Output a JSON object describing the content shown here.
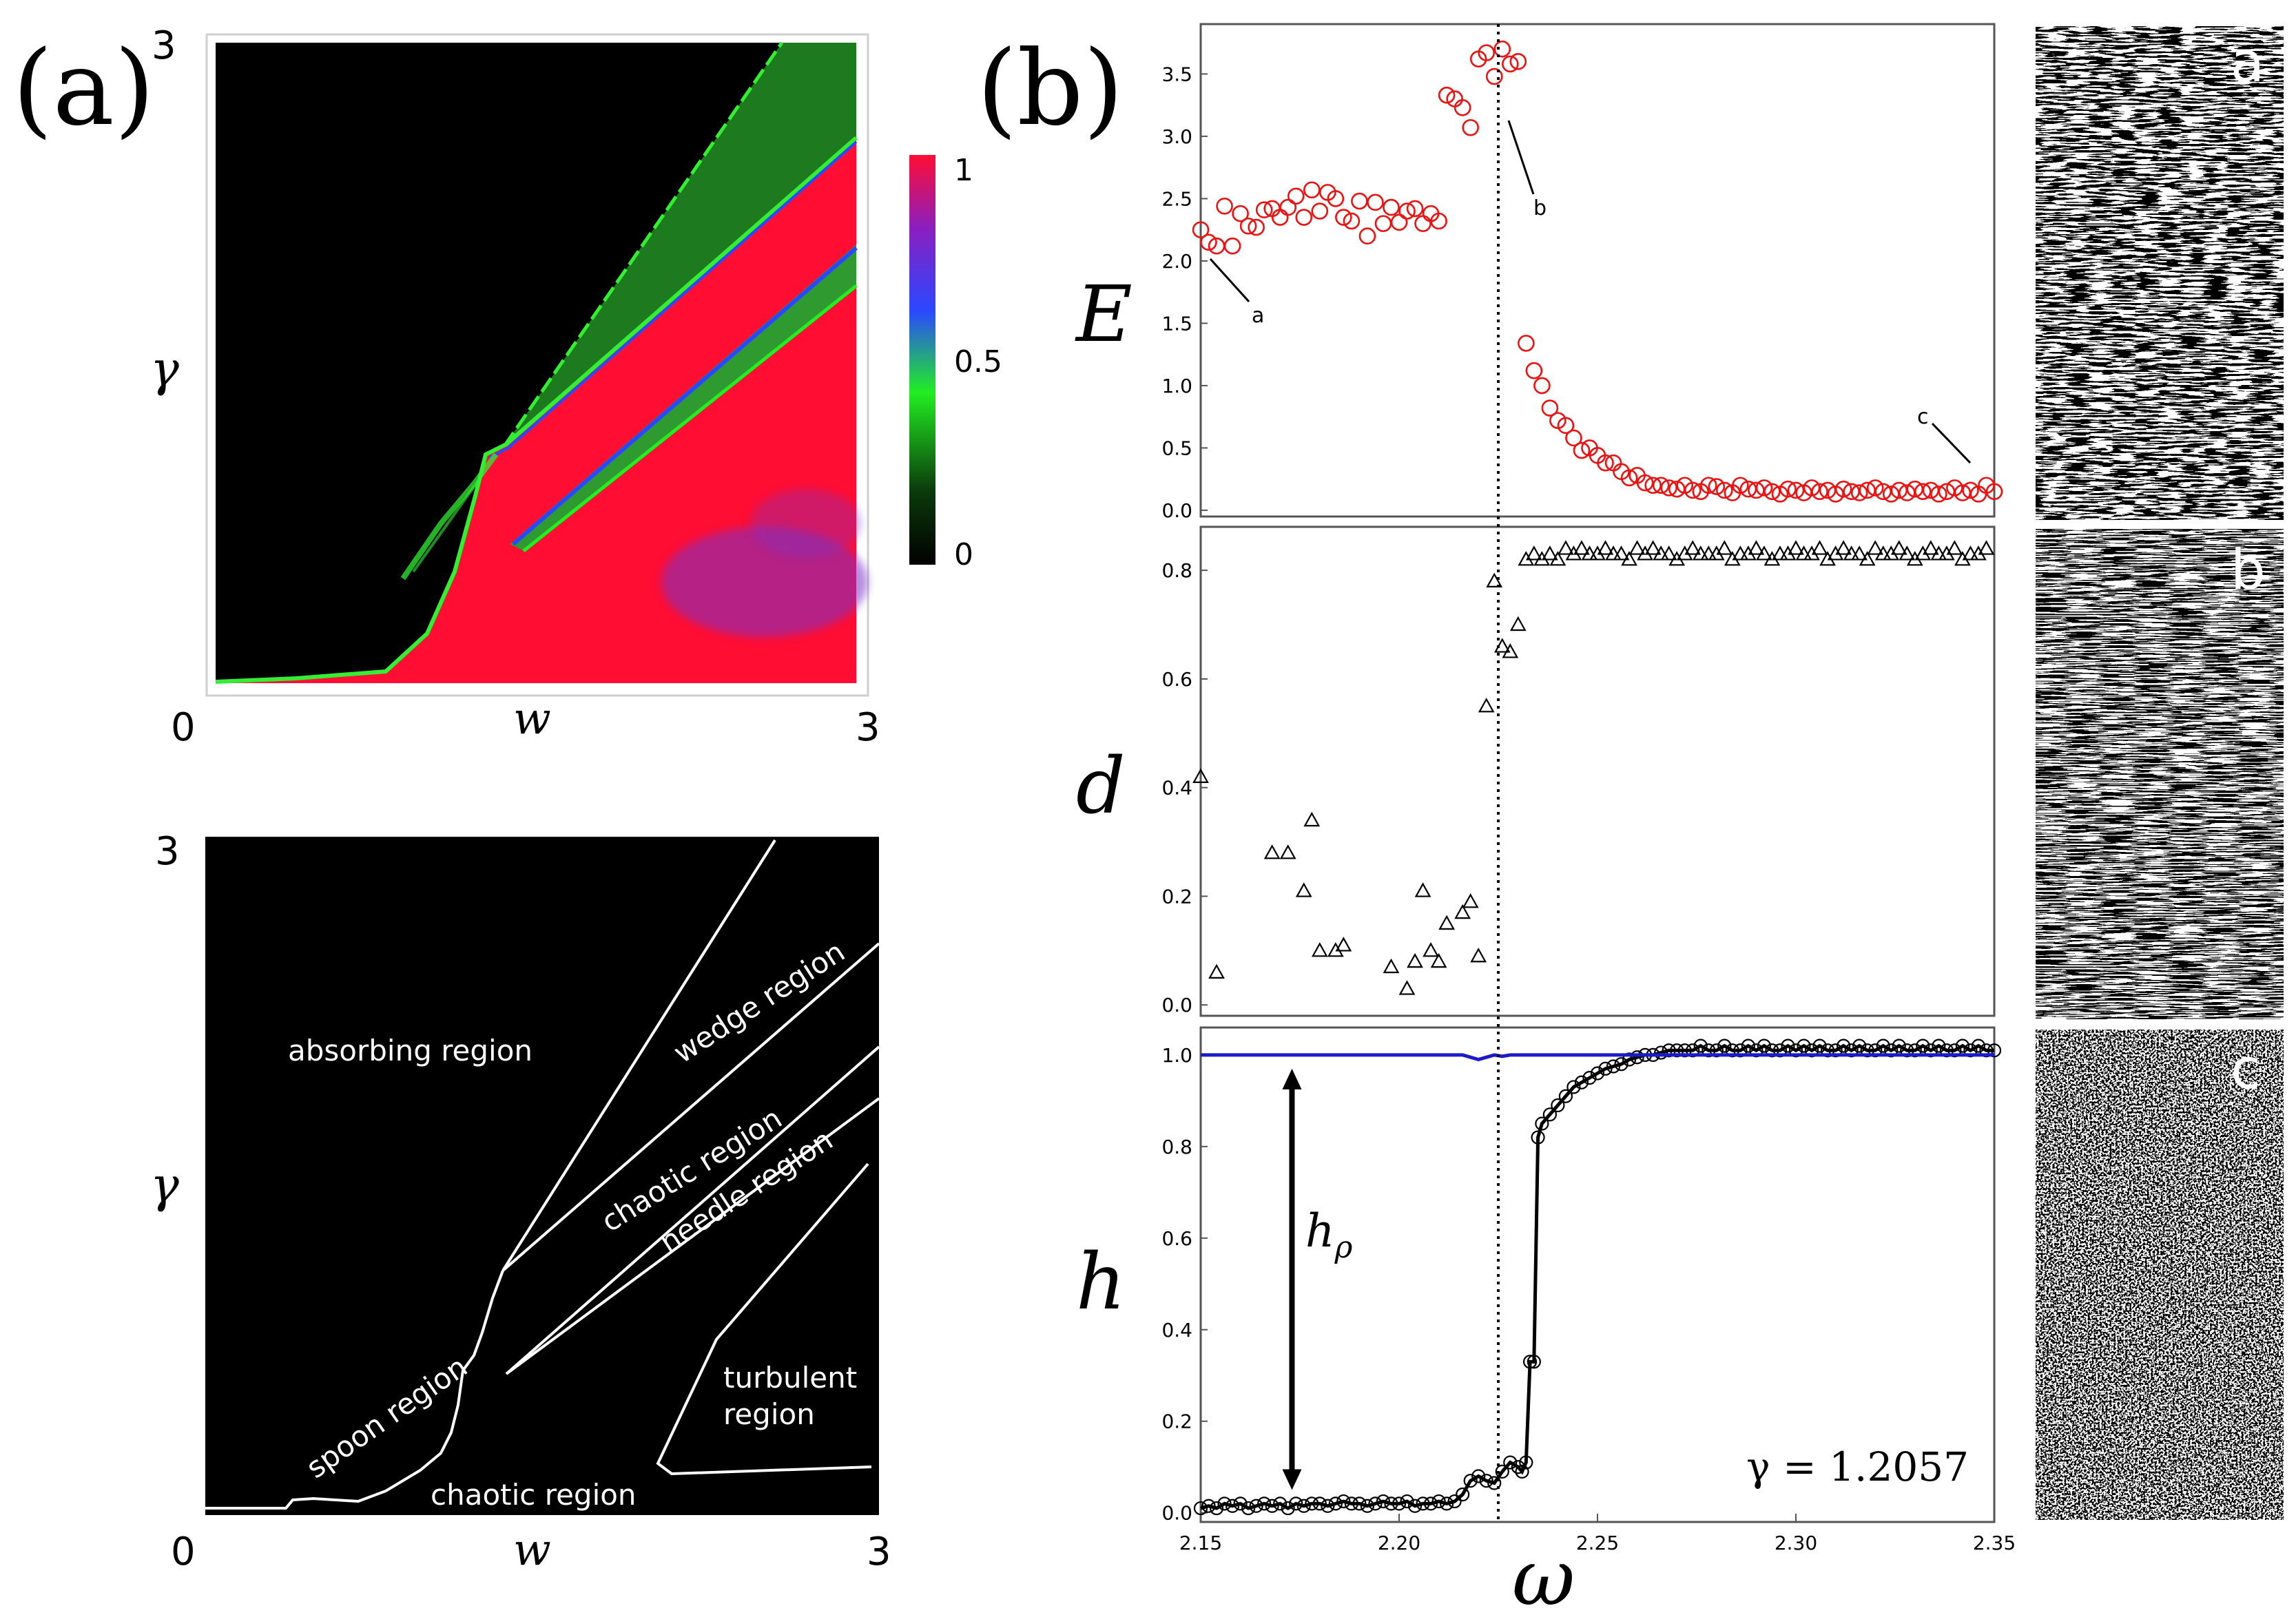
{
  "panel_labels": {
    "a": "(a)",
    "b": "(b)"
  },
  "colors": {
    "absorbing": "#000000",
    "laminar_green": "#1e7a1e",
    "bright_green": "#33ee33",
    "chaotic_red": "#ff0d33",
    "purple": "#7a33c8",
    "blue": "#2a3cff",
    "marker_red": "#ee1111",
    "line_blue": "#1b1bcc"
  },
  "chart_data": [
    {
      "id": "phase_map",
      "type": "heatmap",
      "xlabel": "w",
      "ylabel": "γ",
      "x_ticks": [
        "0",
        "3"
      ],
      "y_ticks": [
        "3"
      ],
      "xlim": [
        0,
        3
      ],
      "ylim": [
        0,
        3
      ],
      "colorbar": {
        "ticks": [
          "1",
          "0.5",
          "0"
        ],
        "range": [
          0,
          1
        ],
        "colors": [
          "#000000",
          "#0a5a0a",
          "#22ee22",
          "#2040ff",
          "#8a20c8",
          "#ff0d33"
        ]
      },
      "regions": [
        {
          "name": "absorbing",
          "value": 0
        },
        {
          "name": "wedge",
          "value": 0.3
        },
        {
          "name": "needle",
          "value": 0.35
        },
        {
          "name": "chaotic",
          "value": 1
        },
        {
          "name": "turbulent",
          "value": 0.85
        }
      ]
    },
    {
      "id": "region_diagram",
      "type": "diagram",
      "xlabel": "w",
      "ylabel": "γ",
      "x_ticks": [
        "0",
        "3"
      ],
      "y_ticks": [
        "3"
      ],
      "xlim": [
        0,
        3
      ],
      "ylim": [
        0,
        3
      ],
      "labels": [
        "absorbing region",
        "wedge region",
        "chaotic region",
        "needle region",
        "spoon region",
        "turbulent",
        "region",
        "chaotic region"
      ]
    },
    {
      "id": "E_vs_omega",
      "type": "scatter",
      "ylabel": "E",
      "xlim": [
        2.15,
        2.35
      ],
      "ylim": [
        -0.05,
        3.9
      ],
      "y_ticks": [
        "0.0",
        "0.5",
        "1.0",
        "1.5",
        "2.0",
        "2.5",
        "3.0",
        "3.5"
      ],
      "vline": 2.225,
      "x": [
        2.15,
        2.152,
        2.154,
        2.156,
        2.158,
        2.16,
        2.162,
        2.164,
        2.166,
        2.168,
        2.17,
        2.172,
        2.174,
        2.176,
        2.178,
        2.18,
        2.182,
        2.184,
        2.186,
        2.188,
        2.19,
        2.192,
        2.194,
        2.196,
        2.198,
        2.2,
        2.202,
        2.204,
        2.206,
        2.208,
        2.21,
        2.212,
        2.214,
        2.216,
        2.218,
        2.22,
        2.222,
        2.224,
        2.226,
        2.228,
        2.23,
        2.232,
        2.234,
        2.236,
        2.238,
        2.24,
        2.242,
        2.244,
        2.246,
        2.248,
        2.25,
        2.252,
        2.254,
        2.256,
        2.258,
        2.26,
        2.262,
        2.264,
        2.266,
        2.268,
        2.27,
        2.272,
        2.274,
        2.276,
        2.278,
        2.28,
        2.282,
        2.284,
        2.286,
        2.288,
        2.29,
        2.292,
        2.294,
        2.296,
        2.298,
        2.3,
        2.302,
        2.304,
        2.306,
        2.308,
        2.31,
        2.312,
        2.314,
        2.316,
        2.318,
        2.32,
        2.322,
        2.324,
        2.326,
        2.328,
        2.33,
        2.332,
        2.334,
        2.336,
        2.338,
        2.34,
        2.342,
        2.344,
        2.346,
        2.348,
        2.35
      ],
      "y": [
        2.25,
        2.15,
        2.12,
        2.44,
        2.12,
        2.38,
        2.28,
        2.27,
        2.41,
        2.42,
        2.35,
        2.43,
        2.52,
        2.35,
        2.57,
        2.4,
        2.55,
        2.5,
        2.35,
        2.32,
        2.48,
        2.2,
        2.47,
        2.3,
        2.43,
        2.31,
        2.4,
        2.42,
        2.3,
        2.38,
        2.32,
        3.33,
        3.3,
        3.23,
        3.07,
        3.62,
        3.67,
        3.48,
        3.7,
        3.58,
        3.6,
        1.34,
        1.12,
        1.0,
        0.82,
        0.72,
        0.68,
        0.58,
        0.48,
        0.5,
        0.44,
        0.38,
        0.38,
        0.31,
        0.26,
        0.28,
        0.22,
        0.2,
        0.2,
        0.18,
        0.17,
        0.2,
        0.16,
        0.15,
        0.2,
        0.19,
        0.16,
        0.14,
        0.2,
        0.17,
        0.16,
        0.18,
        0.15,
        0.13,
        0.17,
        0.16,
        0.14,
        0.18,
        0.15,
        0.16,
        0.13,
        0.17,
        0.15,
        0.14,
        0.16,
        0.18,
        0.15,
        0.13,
        0.16,
        0.14,
        0.17,
        0.15,
        0.16,
        0.13,
        0.15,
        0.18,
        0.14,
        0.16,
        0.13,
        0.2,
        0.15
      ],
      "point_labels": [
        {
          "text": "a",
          "x": 2.152
        },
        {
          "text": "b",
          "x": 2.224
        },
        {
          "text": "c",
          "x": 2.35
        }
      ]
    },
    {
      "id": "d_vs_omega",
      "type": "scatter",
      "ylabel": "d",
      "xlim": [
        2.15,
        2.35
      ],
      "ylim": [
        -0.02,
        0.88
      ],
      "y_ticks": [
        "0.0",
        "0.2",
        "0.4",
        "0.6",
        "0.8"
      ],
      "vline": 2.225,
      "x": [
        2.15,
        2.154,
        2.168,
        2.172,
        2.176,
        2.178,
        2.18,
        2.184,
        2.186,
        2.198,
        2.202,
        2.204,
        2.206,
        2.208,
        2.21,
        2.212,
        2.216,
        2.218,
        2.22,
        2.222,
        2.224,
        2.226,
        2.228,
        2.23,
        2.232,
        2.234,
        2.236,
        2.238,
        2.24,
        2.242,
        2.244,
        2.246,
        2.248,
        2.25,
        2.252,
        2.254,
        2.256,
        2.258,
        2.26,
        2.262,
        2.264,
        2.266,
        2.268,
        2.27,
        2.272,
        2.274,
        2.276,
        2.278,
        2.28,
        2.282,
        2.284,
        2.286,
        2.288,
        2.29,
        2.292,
        2.294,
        2.296,
        2.298,
        2.3,
        2.302,
        2.304,
        2.306,
        2.308,
        2.31,
        2.312,
        2.314,
        2.316,
        2.318,
        2.32,
        2.322,
        2.324,
        2.326,
        2.328,
        2.33,
        2.332,
        2.334,
        2.336,
        2.338,
        2.34,
        2.342,
        2.344,
        2.346,
        2.348
      ],
      "y": [
        0.42,
        0.06,
        0.28,
        0.28,
        0.21,
        0.34,
        0.1,
        0.1,
        0.11,
        0.07,
        0.03,
        0.08,
        0.21,
        0.1,
        0.08,
        0.15,
        0.17,
        0.19,
        0.09,
        0.55,
        0.78,
        0.66,
        0.65,
        0.7,
        0.82,
        0.83,
        0.82,
        0.83,
        0.82,
        0.84,
        0.83,
        0.84,
        0.83,
        0.83,
        0.84,
        0.83,
        0.83,
        0.82,
        0.84,
        0.83,
        0.84,
        0.83,
        0.83,
        0.82,
        0.83,
        0.84,
        0.83,
        0.83,
        0.83,
        0.84,
        0.82,
        0.83,
        0.83,
        0.84,
        0.83,
        0.82,
        0.83,
        0.83,
        0.84,
        0.83,
        0.83,
        0.84,
        0.82,
        0.83,
        0.84,
        0.83,
        0.83,
        0.82,
        0.84,
        0.83,
        0.83,
        0.84,
        0.83,
        0.82,
        0.83,
        0.84,
        0.83,
        0.83,
        0.84,
        0.82,
        0.83,
        0.83,
        0.84
      ]
    },
    {
      "id": "h_vs_omega",
      "type": "line",
      "ylabel": "h",
      "xlabel": "ω",
      "xlim": [
        2.15,
        2.35
      ],
      "ylim": [
        -0.02,
        1.06
      ],
      "y_ticks": [
        "0.0",
        "0.2",
        "0.4",
        "0.6",
        "0.8",
        "1.0"
      ],
      "x_ticks": [
        "2.15",
        "2.20",
        "2.25",
        "2.30",
        "2.35"
      ],
      "vline": 2.225,
      "annotation_gamma": "γ = 1.2057",
      "annotation_h": "h",
      "annotation_h_sub": "ρ",
      "arrow_x": 2.173,
      "arrow_y": [
        0.05,
        0.97
      ],
      "series": [
        {
          "name": "h",
          "color": "#000000",
          "marker": "circle",
          "x": [
            2.15,
            2.152,
            2.154,
            2.156,
            2.158,
            2.16,
            2.162,
            2.164,
            2.166,
            2.168,
            2.17,
            2.172,
            2.174,
            2.176,
            2.178,
            2.18,
            2.182,
            2.184,
            2.186,
            2.188,
            2.19,
            2.192,
            2.194,
            2.196,
            2.198,
            2.2,
            2.202,
            2.204,
            2.206,
            2.208,
            2.21,
            2.212,
            2.214,
            2.216,
            2.218,
            2.22,
            2.222,
            2.224,
            2.226,
            2.228,
            2.23,
            2.231,
            2.232,
            2.233,
            2.234,
            2.235,
            2.236,
            2.238,
            2.24,
            2.242,
            2.244,
            2.246,
            2.248,
            2.25,
            2.252,
            2.254,
            2.256,
            2.258,
            2.26,
            2.262,
            2.264,
            2.266,
            2.268,
            2.27,
            2.272,
            2.274,
            2.276,
            2.278,
            2.28,
            2.282,
            2.284,
            2.286,
            2.288,
            2.29,
            2.292,
            2.294,
            2.296,
            2.298,
            2.3,
            2.302,
            2.304,
            2.306,
            2.308,
            2.31,
            2.312,
            2.314,
            2.316,
            2.318,
            2.32,
            2.322,
            2.324,
            2.326,
            2.328,
            2.33,
            2.332,
            2.334,
            2.336,
            2.338,
            2.34,
            2.342,
            2.344,
            2.346,
            2.348,
            2.35
          ],
          "y": [
            0.01,
            0.015,
            0.01,
            0.02,
            0.015,
            0.02,
            0.01,
            0.015,
            0.02,
            0.015,
            0.02,
            0.01,
            0.02,
            0.015,
            0.02,
            0.02,
            0.015,
            0.02,
            0.025,
            0.02,
            0.02,
            0.015,
            0.02,
            0.025,
            0.02,
            0.02,
            0.025,
            0.015,
            0.02,
            0.02,
            0.025,
            0.02,
            0.025,
            0.04,
            0.07,
            0.08,
            0.07,
            0.065,
            0.09,
            0.11,
            0.1,
            0.09,
            0.11,
            0.33,
            0.33,
            0.82,
            0.85,
            0.87,
            0.89,
            0.91,
            0.93,
            0.94,
            0.95,
            0.96,
            0.97,
            0.975,
            0.98,
            0.99,
            0.995,
            1.0,
            1.0,
            1.005,
            1.01,
            1.01,
            1.01,
            1.01,
            1.02,
            1.01,
            1.01,
            1.02,
            1.01,
            1.01,
            1.02,
            1.01,
            1.02,
            1.01,
            1.01,
            1.02,
            1.01,
            1.02,
            1.01,
            1.02,
            1.01,
            1.01,
            1.02,
            1.01,
            1.02,
            1.01,
            1.01,
            1.02,
            1.01,
            1.02,
            1.01,
            1.01,
            1.02,
            1.01,
            1.02,
            1.01,
            1.01,
            1.02,
            1.01,
            1.02,
            1.01,
            1.01
          ]
        },
        {
          "name": "h_rho",
          "color": "#1b1bcc",
          "x": [
            2.15,
            2.2,
            2.216,
            2.218,
            2.22,
            2.222,
            2.224,
            2.226,
            2.228,
            2.23,
            2.232,
            2.24,
            2.26,
            2.28,
            2.3,
            2.32,
            2.34,
            2.35
          ],
          "y": [
            1.0,
            1.0,
            1.0,
            0.995,
            0.99,
            0.995,
            1.0,
            0.997,
            1.0,
            1.0,
            1.0,
            1.0,
            1.0,
            1.0,
            1.0,
            1.0,
            1.0,
            1.0
          ]
        }
      ]
    }
  ],
  "snapshots": [
    {
      "label": "a",
      "pattern": "ordered-waves"
    },
    {
      "label": "b",
      "pattern": "dense-waves"
    },
    {
      "label": "c",
      "pattern": "turbulent-noise"
    }
  ]
}
